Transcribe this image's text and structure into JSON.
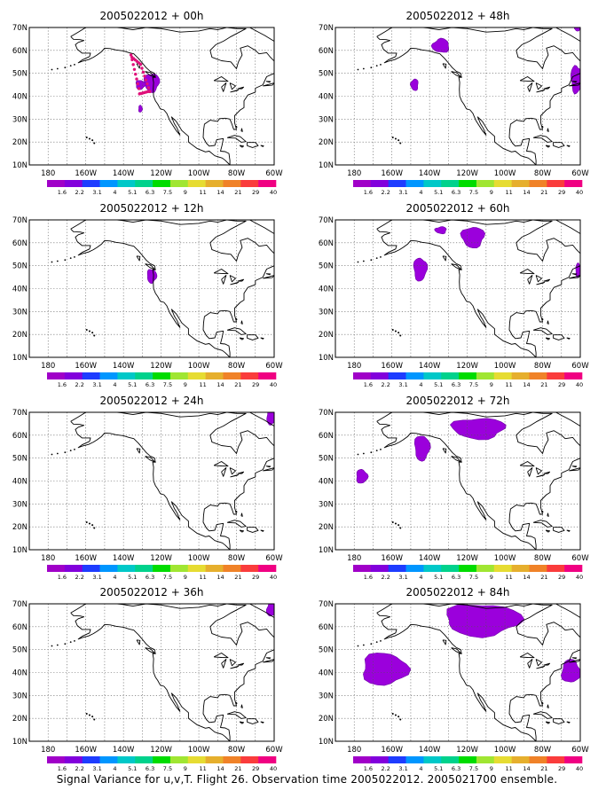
{
  "footer": "Signal Variance for u,v,T. Flight 26. Observation time 2005022012. 2005021700 ensemble.",
  "colors": {
    "shade": "#9b00dc",
    "shade_outline": "#6d00a6",
    "obs_dots": "#e0117a",
    "grid": "#555555",
    "coast": "#000000"
  },
  "axes": {
    "lat_labels": [
      "70N",
      "60N",
      "50N",
      "40N",
      "30N",
      "20N",
      "10N"
    ],
    "lon_labels": [
      "180",
      "160W",
      "140W",
      "120W",
      "100W",
      "80W",
      "60W"
    ]
  },
  "colorbar": {
    "labels": [
      "1.6",
      "2.2",
      "3.1",
      "4",
      "5.1",
      "6.3",
      "7.5",
      "9",
      "11",
      "14",
      "21",
      "29",
      "40"
    ],
    "colors": [
      "#a000c8",
      "#8200dc",
      "#1e3cff",
      "#0096ff",
      "#00c8c8",
      "#00d28c",
      "#00dc00",
      "#a0e632",
      "#e6dc32",
      "#e6af2d",
      "#f08228",
      "#fa3c3c",
      "#f00082"
    ]
  },
  "panels": [
    {
      "title": "2005022012 + 00h",
      "obs_dots": true,
      "blobs": [
        {
          "lon": -125,
          "lat": 46,
          "rlon": 4,
          "rlat": 4
        },
        {
          "lon": -131,
          "lat": 45,
          "rlon": 2.5,
          "rlat": 2
        },
        {
          "lon": -131,
          "lat": 34.5,
          "rlon": 1,
          "rlat": 1.5
        }
      ]
    },
    {
      "title": "2005022012 + 12h",
      "obs_dots": false,
      "blobs": [
        {
          "lon": -125,
          "lat": 45.5,
          "rlon": 2.5,
          "rlat": 3
        }
      ]
    },
    {
      "title": "2005022012 + 24h",
      "obs_dots": false,
      "blobs": [
        {
          "lon": -61.5,
          "lat": 68,
          "rlon": 2.5,
          "rlat": 3.5
        }
      ]
    },
    {
      "title": "2005022012 + 36h",
      "obs_dots": false,
      "blobs": [
        {
          "lon": -61.5,
          "lat": 67.5,
          "rlon": 2.5,
          "rlat": 3
        }
      ]
    },
    {
      "title": "2005022012 + 48h",
      "obs_dots": false,
      "blobs": [
        {
          "lon": -134,
          "lat": 62,
          "rlon": 4.5,
          "rlat": 3
        },
        {
          "lon": -148,
          "lat": 45,
          "rlon": 2,
          "rlat": 2.5
        },
        {
          "lon": -61.5,
          "lat": 69.5,
          "rlon": 1.5,
          "rlat": 1
        },
        {
          "lon": -62,
          "lat": 47.5,
          "rlon": 3,
          "rlat": 6
        }
      ]
    },
    {
      "title": "2005022012 + 60h",
      "obs_dots": false,
      "blobs": [
        {
          "lon": -134,
          "lat": 65.5,
          "rlon": 3,
          "rlat": 1.5
        },
        {
          "lon": -117,
          "lat": 62.5,
          "rlon": 6,
          "rlat": 4.5
        },
        {
          "lon": -145,
          "lat": 48.5,
          "rlon": 3.5,
          "rlat": 5
        },
        {
          "lon": -61,
          "lat": 48,
          "rlon": 1.5,
          "rlat": 3
        }
      ]
    },
    {
      "title": "2005022012 + 72h",
      "obs_dots": false,
      "blobs": [
        {
          "lon": -114,
          "lat": 63,
          "rlon": 14,
          "rlat": 4.5
        },
        {
          "lon": -144,
          "lat": 54.5,
          "rlon": 4,
          "rlat": 5.5
        },
        {
          "lon": -176,
          "lat": 42,
          "rlon": 3,
          "rlat": 3
        }
      ]
    },
    {
      "title": "2005022012 + 84h",
      "obs_dots": false,
      "blobs": [
        {
          "lon": -112,
          "lat": 63,
          "rlon": 20,
          "rlat": 7
        },
        {
          "lon": -164,
          "lat": 41.5,
          "rlon": 12,
          "rlat": 7
        },
        {
          "lon": -65,
          "lat": 40.5,
          "rlon": 5,
          "rlat": 5
        }
      ]
    }
  ]
}
